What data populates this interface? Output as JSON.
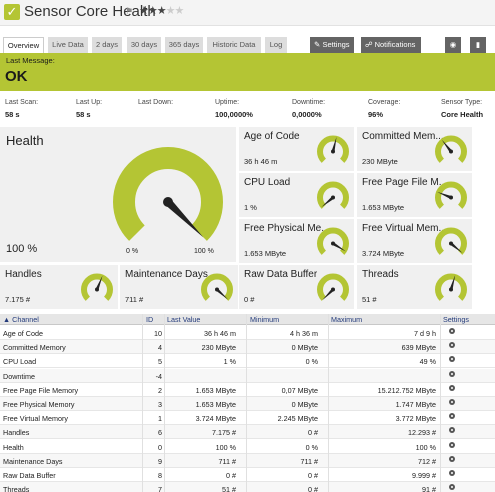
{
  "header": {
    "title": "Sensor Core Health",
    "stars_on": 3,
    "stars_total": 5,
    "status_color": "#b4c534"
  },
  "tabs": [
    {
      "label": "Overview",
      "active": true
    },
    {
      "label": "Live Data"
    },
    {
      "label": "2 days"
    },
    {
      "label": "30 days"
    },
    {
      "label": "365 days"
    },
    {
      "label": "Historic Data"
    },
    {
      "label": "Log"
    }
  ],
  "actions": {
    "settings": "Settings",
    "notifications": "Notifications"
  },
  "message": {
    "label": "Last Message:",
    "value": "OK"
  },
  "stats": [
    {
      "label": "Last Scan:",
      "value": "58 s"
    },
    {
      "label": "Last Up:",
      "value": "58 s"
    },
    {
      "label": "Last Down:",
      "value": ""
    },
    {
      "label": "Uptime:",
      "value": "100,0000%"
    },
    {
      "label": "Downtime:",
      "value": "0,0000%"
    },
    {
      "label": "Coverage:",
      "value": "96%"
    },
    {
      "label": "Sensor Type:",
      "value": "Core Health"
    }
  ],
  "health": {
    "title": "Health",
    "value": "100 %",
    "min_label": "0 %",
    "max_label": "100 %",
    "level": 1.0
  },
  "gauges": {
    "age_of_code": {
      "title": "Age of Code",
      "value": "36 h 46 m",
      "level": 0.55
    },
    "committed_memory": {
      "title": "Committed Mem...",
      "value": "230 MByte",
      "level": 0.36
    },
    "cpu_load": {
      "title": "CPU Load",
      "value": "1 %",
      "level": 0.02
    },
    "free_page_file": {
      "title": "Free Page File M...",
      "value": "1.653 MByte",
      "level": 0.25
    },
    "free_physical": {
      "title": "Free Physical Me...",
      "value": "1.653 MByte",
      "level": 0.95
    },
    "free_virtual": {
      "title": "Free Virtual Mem...",
      "value": "3.724 MByte",
      "level": 0.98
    },
    "handles": {
      "title": "Handles",
      "value": "7.175 #",
      "level": 0.58
    },
    "maintenance_days": {
      "title": "Maintenance Days",
      "value": "711 #",
      "level": 0.99
    },
    "raw_data_buffer": {
      "title": "Raw Data Buffer",
      "value": "0 #",
      "level": 0.0
    },
    "threads": {
      "title": "Threads",
      "value": "51 #",
      "level": 0.56
    }
  },
  "table": {
    "headers": [
      "Channel",
      "ID",
      "Last Value",
      "Minimum",
      "Maximum",
      "Settings"
    ],
    "rows": [
      [
        "Age of Code",
        "10",
        "36 h 46 m",
        "4 h 36 m",
        "7 d 9 h"
      ],
      [
        "Committed Memory",
        "4",
        "230 MByte",
        "0 MByte",
        "639 MByte"
      ],
      [
        "CPU Load",
        "5",
        "1 %",
        "0 %",
        "49 %"
      ],
      [
        "Downtime",
        "-4",
        "",
        "",
        ""
      ],
      [
        "Free Page File Memory",
        "2",
        "1.653 MByte",
        "0,07 MByte",
        "15.212.752 MByte"
      ],
      [
        "Free Physical Memory",
        "3",
        "1.653 MByte",
        "0 MByte",
        "1.747 MByte"
      ],
      [
        "Free Virtual Memory",
        "1",
        "3.724 MByte",
        "2.245 MByte",
        "3.772 MByte"
      ],
      [
        "Handles",
        "6",
        "7.175 #",
        "0 #",
        "12.293 #"
      ],
      [
        "Health",
        "0",
        "100 %",
        "0 %",
        "100 %"
      ],
      [
        "Maintenance Days",
        "9",
        "711 #",
        "711 #",
        "712 #"
      ],
      [
        "Raw Data Buffer",
        "8",
        "0 #",
        "0 #",
        "9.999 #"
      ],
      [
        "Threads",
        "7",
        "51 #",
        "0 #",
        "91 #"
      ]
    ]
  }
}
